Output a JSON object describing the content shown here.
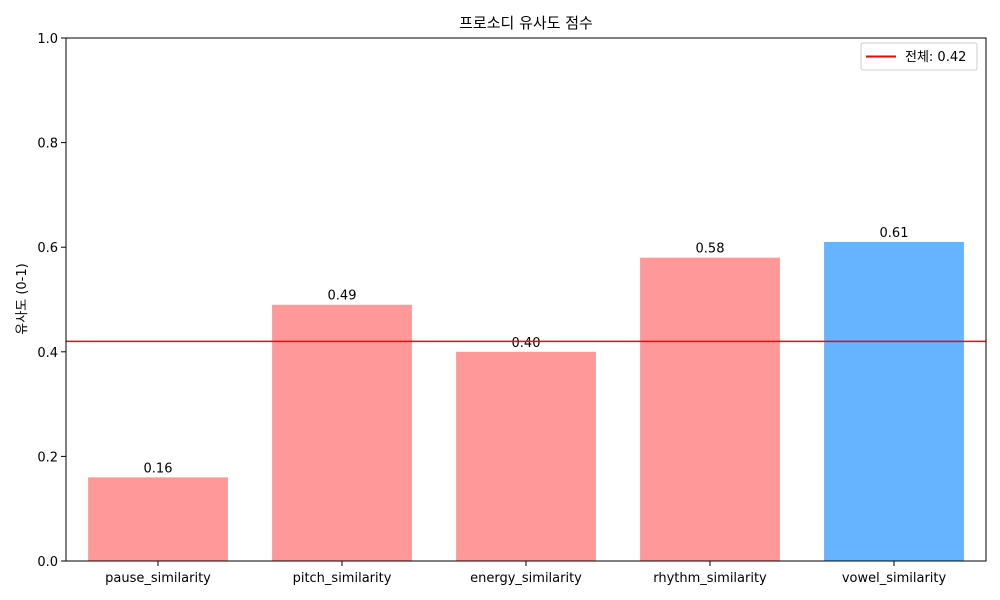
{
  "chart_data": {
    "type": "bar",
    "title": "프로소디 유사도 점수",
    "xlabel": "",
    "ylabel": "유사도 (0-1)",
    "ylim": [
      0,
      1.0
    ],
    "yticks": [
      "0.0",
      "0.2",
      "0.4",
      "0.6",
      "0.8",
      "1.0"
    ],
    "categories": [
      "pause_similarity",
      "pitch_similarity",
      "energy_similarity",
      "rhythm_similarity",
      "vowel_similarity"
    ],
    "values": [
      0.16,
      0.49,
      0.4,
      0.58,
      0.61
    ],
    "value_labels": [
      "0.16",
      "0.49",
      "0.40",
      "0.58",
      "0.61"
    ],
    "bar_colors": [
      "#ff9999",
      "#ff9999",
      "#ff9999",
      "#ff9999",
      "#66b3ff"
    ],
    "reference_line": {
      "value": 0.42,
      "label": "전체: 0.42",
      "color": "#ff0000"
    },
    "legend_position": "top-right",
    "grid": false
  }
}
